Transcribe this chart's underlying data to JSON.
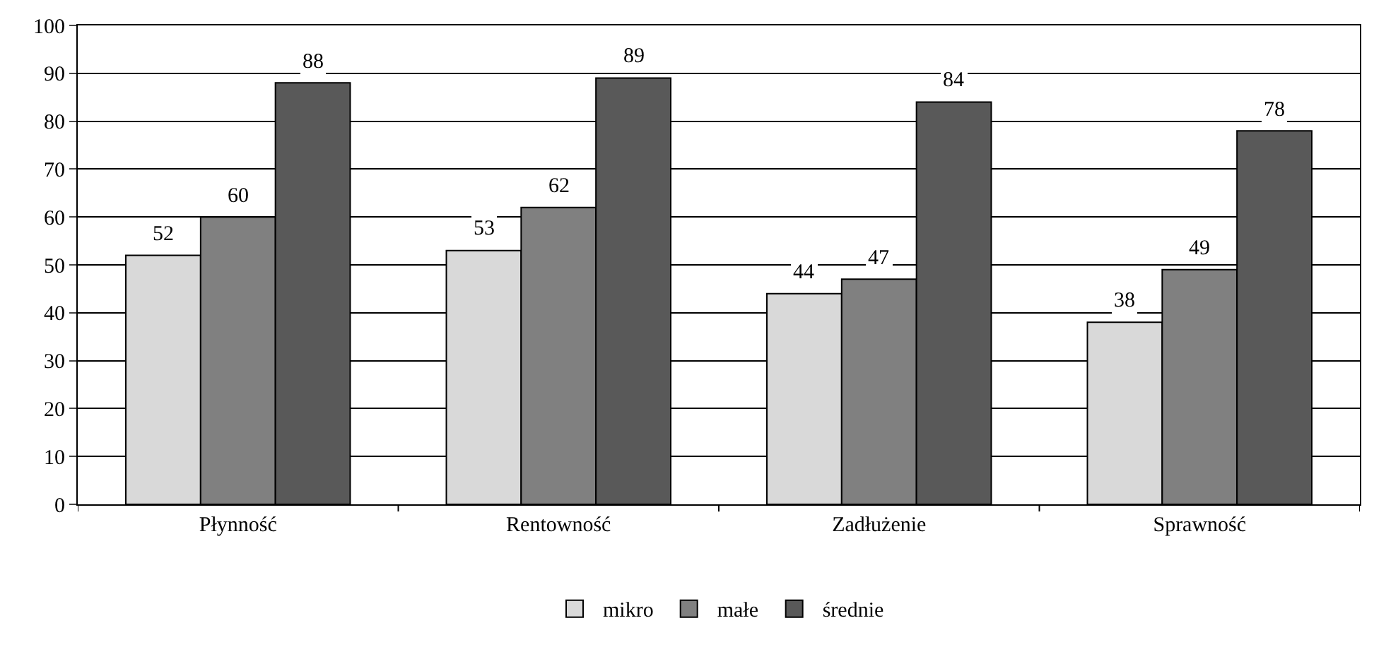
{
  "chart_data": {
    "type": "bar",
    "categories": [
      "Płynność",
      "Rentowność",
      "Zadłużenie",
      "Sprawność"
    ],
    "series": [
      {
        "name": "mikro",
        "color": "#d9d9d9",
        "values": [
          52,
          53,
          44,
          38
        ]
      },
      {
        "name": "małe",
        "color": "#808080",
        "values": [
          60,
          62,
          47,
          49
        ]
      },
      {
        "name": "średnie",
        "color": "#595959",
        "values": [
          88,
          89,
          84,
          78
        ]
      }
    ],
    "ylim": [
      0,
      100
    ],
    "yticks": [
      0,
      10,
      20,
      30,
      40,
      50,
      60,
      70,
      80,
      90,
      100
    ],
    "grid": "y",
    "legend": "bottom",
    "data_labels": true
  }
}
